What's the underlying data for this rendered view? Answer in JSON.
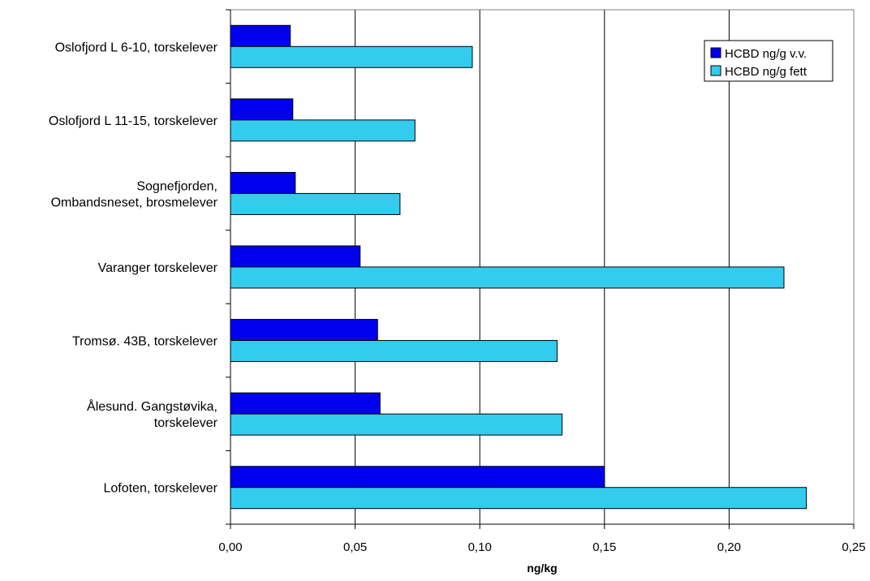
{
  "chart_data": {
    "type": "bar",
    "orientation": "horizontal",
    "categories": [
      [
        "Oslofjord L 6-10, torskelever"
      ],
      [
        "Oslofjord L 11-15, torskelever"
      ],
      [
        "Sognefjorden,",
        "Ombandsneset, brosmelever"
      ],
      [
        "Varanger torskelever"
      ],
      [
        "Tromsø. 43B, torskelever"
      ],
      [
        "Ålesund. Gangstøvika,",
        "torskelever"
      ],
      [
        "Lofoten, torskelever"
      ]
    ],
    "series": [
      {
        "name": "HCBD ng/g v.v.",
        "color": "#0000ee",
        "values": [
          0.024,
          0.025,
          0.026,
          0.052,
          0.059,
          0.06,
          0.15
        ]
      },
      {
        "name": "HCBD ng/g fett",
        "color": "#33ccee",
        "values": [
          0.097,
          0.074,
          0.068,
          0.222,
          0.131,
          0.133,
          0.231
        ]
      }
    ],
    "xlabel": "ng/kg",
    "xlim": [
      0,
      0.25
    ],
    "xticks": [
      "0,00",
      "0,05",
      "0,10",
      "0,15",
      "0,20",
      "0,25"
    ],
    "grid": "vertical",
    "legend_position": "top-right"
  }
}
